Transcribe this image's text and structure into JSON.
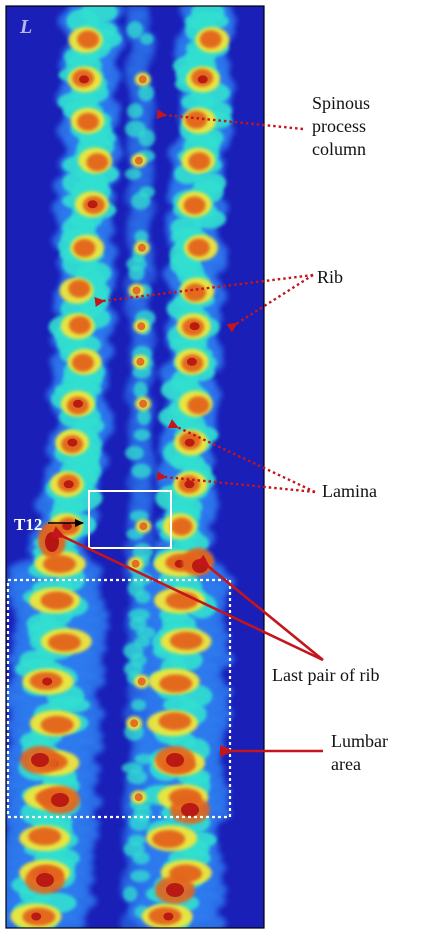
{
  "image": {
    "corner_label": "L",
    "vertebra_label": "T12",
    "colors": {
      "background": "#1a1fb8",
      "low": "#2f7df0",
      "mid": "#33e0d0",
      "high": "#f0e63a",
      "peak": "#e3641e",
      "max": "#b41212",
      "arrow_red": "#c4141c",
      "label_marker": "#ffffff"
    }
  },
  "annotations": {
    "spinous": {
      "line1": "Spinous",
      "line2": "process",
      "line3": "column"
    },
    "rib": "Rib",
    "lamina": "Lamina",
    "last_ribs": "Last pair of rib",
    "lumbar": {
      "line1": "Lumbar",
      "line2": "area"
    }
  }
}
